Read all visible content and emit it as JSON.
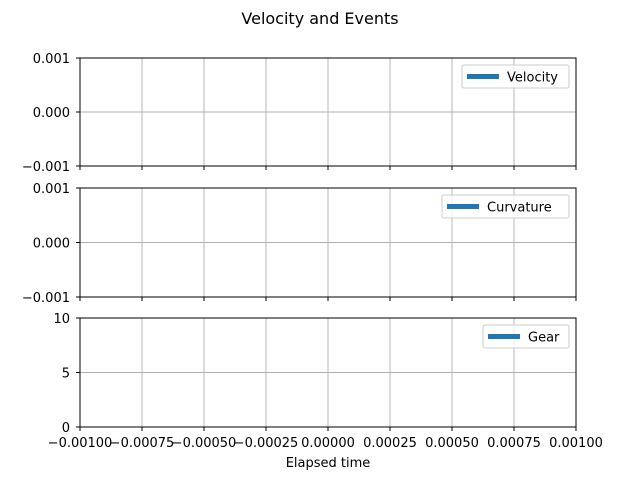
{
  "chart_data": {
    "type": "line",
    "title": "Velocity and Events",
    "xlabel": "Elapsed time",
    "xlim": [
      -0.001,
      0.001
    ],
    "x_ticks": [
      "−0.00100",
      "−0.00075",
      "−0.00050",
      "−0.00025",
      "0.00000",
      "0.00025",
      "0.00050",
      "0.00075",
      "0.00100"
    ],
    "grid": true,
    "shared_x": true,
    "subplots": [
      {
        "ylim": [
          -0.001,
          0.001
        ],
        "y_ticks": [
          "−0.001",
          "0.000",
          "0.001"
        ],
        "legend_position": "upper-right",
        "series": [
          {
            "name": "Velocity",
            "color": "#1f77b4",
            "x": [],
            "y": []
          }
        ]
      },
      {
        "ylim": [
          -0.001,
          0.001
        ],
        "y_ticks": [
          "−0.001",
          "0.000",
          "0.001"
        ],
        "legend_position": "upper-right",
        "series": [
          {
            "name": "Curvature",
            "color": "#1f77b4",
            "x": [],
            "y": []
          }
        ]
      },
      {
        "ylim": [
          0,
          10
        ],
        "y_ticks": [
          "0",
          "5",
          "10"
        ],
        "legend_position": "upper-right",
        "series": [
          {
            "name": "Gear",
            "color": "#1f77b4",
            "x": [],
            "y": []
          }
        ]
      }
    ]
  }
}
